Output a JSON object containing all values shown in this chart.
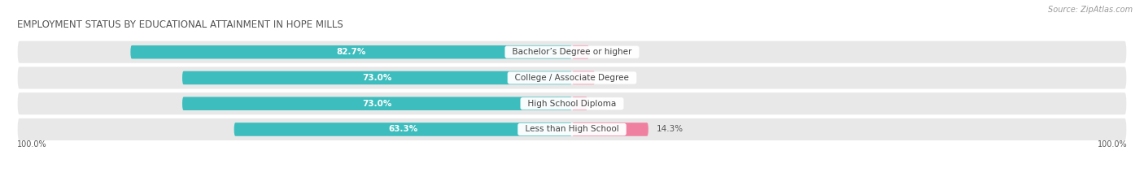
{
  "title": "EMPLOYMENT STATUS BY EDUCATIONAL ATTAINMENT IN HOPE MILLS",
  "source": "Source: ZipAtlas.com",
  "categories": [
    "Less than High School",
    "High School Diploma",
    "College / Associate Degree",
    "Bachelor’s Degree or higher"
  ],
  "in_labor_force": [
    63.3,
    73.0,
    73.0,
    82.7
  ],
  "unemployed": [
    14.3,
    2.9,
    4.3,
    3.2
  ],
  "labor_force_color": "#3dbdbd",
  "unemployed_color": "#f080a0",
  "row_bg_color": "#e8e8e8",
  "title_fontsize": 8.5,
  "label_fontsize": 7.5,
  "tick_fontsize": 7,
  "legend_fontsize": 7.5,
  "source_fontsize": 7,
  "left_axis_label": "100.0%",
  "right_axis_label": "100.0%",
  "bar_height": 0.52,
  "figsize": [
    14.06,
    2.33
  ],
  "dpi": 100
}
